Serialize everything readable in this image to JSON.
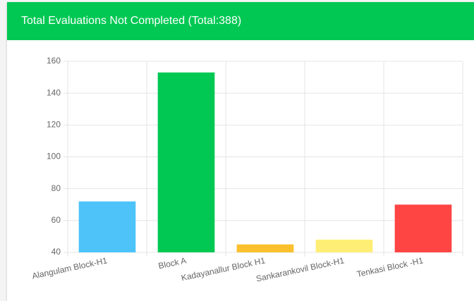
{
  "chart_data": {
    "type": "bar",
    "title": "Total Evaluations Not Completed (Total:388)",
    "categories": [
      "Alangulam Block-H1",
      "Block A",
      "Kadayanallur Block H1",
      "Sankarankovil Block-H1",
      "Tenkasi Block -H1"
    ],
    "values": [
      72,
      153,
      45,
      48,
      70
    ],
    "colors": [
      "#4dc3fa",
      "#00c853",
      "#fbc02d",
      "#ffee75",
      "#ff4444"
    ],
    "ylim": [
      40,
      160
    ],
    "yticks": [
      40,
      60,
      80,
      100,
      120,
      140,
      160
    ],
    "grid": true
  }
}
